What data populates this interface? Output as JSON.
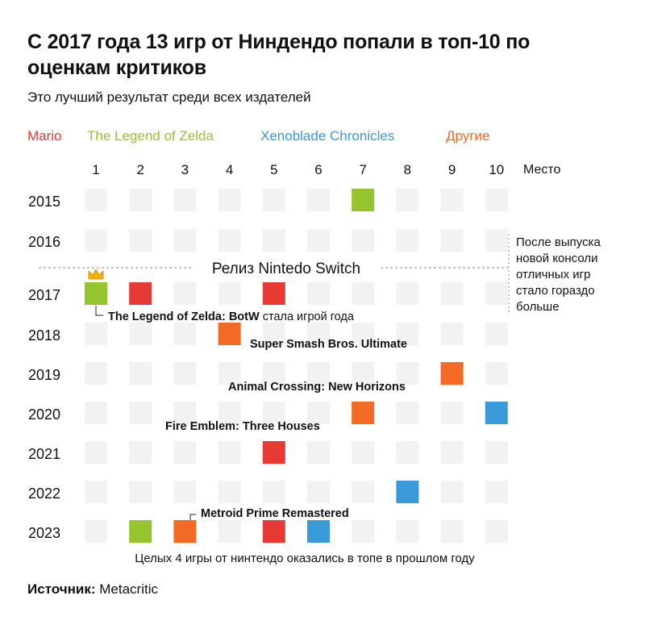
{
  "header": {
    "title": "С 2017 года 13 игр от Ниндендо попали в топ-10 по оценкам критиков",
    "subtitle": "Это лучший результат среди всех издателей"
  },
  "legend": [
    {
      "label": "Mario",
      "color": "#e83a34"
    },
    {
      "label": "The Legend of Zelda",
      "color": "#95c42e"
    },
    {
      "label": "Xenoblade Chronicles",
      "color": "#3a9ad9"
    },
    {
      "label": "Другие",
      "color": "#f26a24"
    }
  ],
  "footer": {
    "source_label": "Источник:",
    "source_value": "Metacritic"
  },
  "chart_data": {
    "type": "heatmap",
    "x_axis_label": "Место",
    "places": [
      "1",
      "2",
      "3",
      "4",
      "5",
      "6",
      "7",
      "8",
      "9",
      "10"
    ],
    "years": [
      "2015",
      "2016",
      "2017",
      "2018",
      "2019",
      "2020",
      "2021",
      "2022",
      "2023"
    ],
    "empty_color": "#f2f2f2",
    "entries": [
      {
        "year": "2015",
        "place": 7,
        "series": "The Legend of Zelda"
      },
      {
        "year": "2017",
        "place": 1,
        "series": "The Legend of Zelda",
        "crown": true
      },
      {
        "year": "2017",
        "place": 2,
        "series": "Mario"
      },
      {
        "year": "2017",
        "place": 5,
        "series": "Mario"
      },
      {
        "year": "2018",
        "place": 4,
        "series": "Другие"
      },
      {
        "year": "2019",
        "place": 9,
        "series": "Другие"
      },
      {
        "year": "2020",
        "place": 7,
        "series": "Другие"
      },
      {
        "year": "2020",
        "place": 10,
        "series": "Xenoblade Chronicles"
      },
      {
        "year": "2021",
        "place": 5,
        "series": "Mario"
      },
      {
        "year": "2022",
        "place": 8,
        "series": "Xenoblade Chronicles"
      },
      {
        "year": "2023",
        "place": 2,
        "series": "The Legend of Zelda"
      },
      {
        "year": "2023",
        "place": 3,
        "series": "Другие"
      },
      {
        "year": "2023",
        "place": 5,
        "series": "Mario"
      },
      {
        "year": "2023",
        "place": 6,
        "series": "Xenoblade Chronicles"
      }
    ],
    "divider": {
      "after_year": "2016",
      "label": "Релиз Nintedo Switch"
    },
    "side_note": "После выпуска новой консоли отличных игр стало гораздо больше",
    "annotations": [
      {
        "year": "2017",
        "place": 1,
        "bold": "The Legend of Zelda: BotW",
        "text": " стала игрой года"
      },
      {
        "year": "2018",
        "place": 4,
        "bold": "Super Smash Bros. Ultimate",
        "text": ""
      },
      {
        "year": "2019",
        "place": 9,
        "bold": "Animal Crossing: New Horizons",
        "text": ""
      },
      {
        "year": "2020",
        "place": 7,
        "bold": "Fire Emblem: Three Houses",
        "text": ""
      },
      {
        "year": "2023",
        "place": 3,
        "bold": "Metroid Prime Remastered",
        "text": ""
      }
    ],
    "bottom_note": "Целых 4 игры от нинтендо оказались в топе в прошлом году"
  }
}
